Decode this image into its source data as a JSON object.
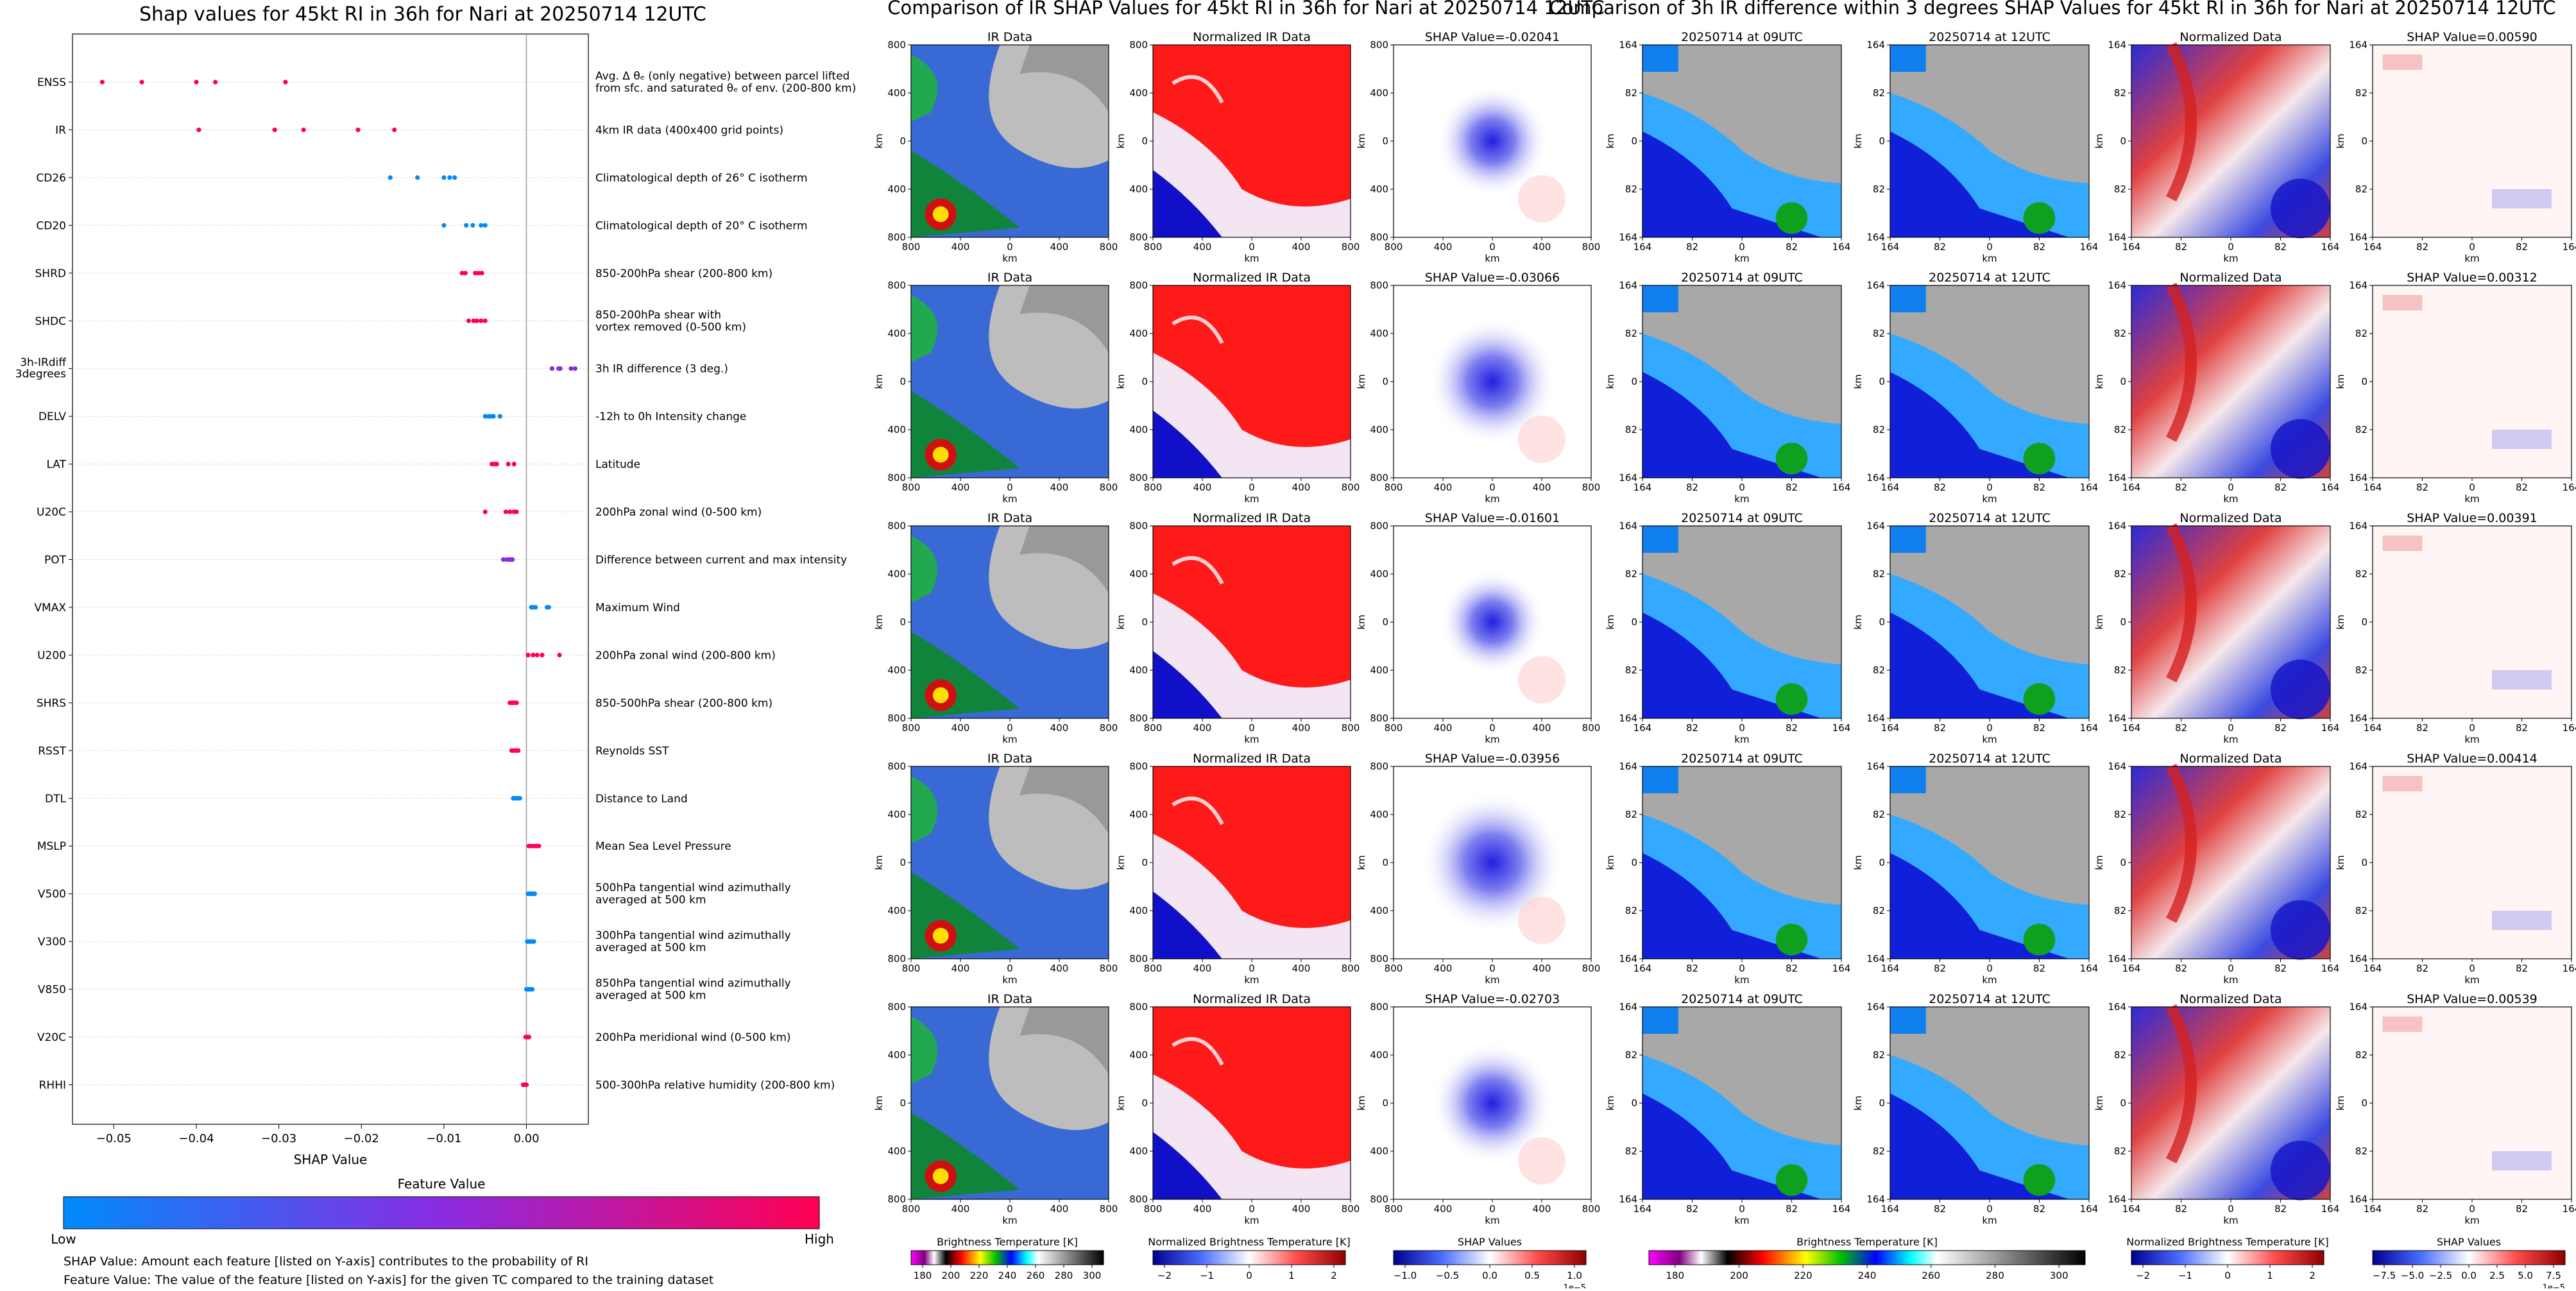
{
  "shap_section": {
    "title": "Shap values for 45kt RI in 36h for Nari at 20250714 12UTC",
    "xlabel": "SHAP Value",
    "colorbar_title": "Feature Value",
    "colorbar_low": "Low",
    "colorbar_high": "High",
    "colors": {
      "low": "#008afb",
      "mid": "#8a2be2",
      "high": "#ff0052"
    },
    "note1": "SHAP Value: Amount each feature [listed on Y-axis] contributes to the probability of RI",
    "note2": "Feature Value: The value of the feature [listed on Y-axis] for the given TC compared to the training dataset"
  },
  "ir_section": {
    "title": "Comparison of IR SHAP Values for 45kt RI in 36h for Nari at 20250714 12UTC",
    "col_titles": [
      "IR Data",
      "Normalized IR Data"
    ],
    "shap_titles": [
      "SHAP Value=-0.02041",
      "SHAP Value=-0.03066",
      "SHAP Value=-0.01601",
      "SHAP Value=-0.03956",
      "SHAP Value=-0.02703"
    ],
    "ticks": [
      "800",
      "400",
      "0",
      "400",
      "800"
    ],
    "axis_label": "km",
    "cbar_labels": [
      "Brightness Temperature [K]",
      "Normalized Brightness Temperature [K]",
      "SHAP Values"
    ],
    "cbar_ticks_bt": [
      "180",
      "200",
      "220",
      "240",
      "260",
      "280",
      "300"
    ],
    "cbar_ticks_norm": [
      "−2",
      "−1",
      "0",
      "1",
      "2"
    ],
    "cbar_ticks_shap": [
      "−1.0",
      "−0.5",
      "0.0",
      "0.5",
      "1.0"
    ],
    "shap_exponent": "1e−5"
  },
  "diff_section": {
    "title": "Comparison of 3h IR difference within 3 degrees SHAP Values for 45kt RI in 36h for Nari at 20250714 12UTC",
    "col_titles": [
      "20250714 at 09UTC",
      "20250714 at 12UTC",
      "Normalized Data"
    ],
    "shap_titles": [
      "SHAP Value=0.00590",
      "SHAP Value=0.00312",
      "SHAP Value=0.00391",
      "SHAP Value=0.00414",
      "SHAP Value=0.00539"
    ],
    "ticks": [
      "164",
      "82",
      "0",
      "82",
      "164"
    ],
    "axis_label": "km",
    "cbar_labels": [
      "Brightness Temperature [K]",
      "Normalized Brightness Temperature [K]",
      "SHAP Values"
    ],
    "cbar_ticks_bt": [
      "180",
      "200",
      "220",
      "240",
      "260",
      "280",
      "300"
    ],
    "cbar_ticks_norm": [
      "−2",
      "−1",
      "0",
      "1",
      "2"
    ],
    "cbar_ticks_shap": [
      "−7.5",
      "−5.0",
      "−2.5",
      "0.0",
      "2.5",
      "5.0",
      "7.5"
    ],
    "shap_exponent": "1e−5"
  },
  "chart_data": [
    {
      "type": "scatter",
      "title": "Shap values for 45kt RI in 36h for Nari at 20250714 12UTC",
      "xlabel": "SHAP Value",
      "xlim": [
        -0.055,
        0.0075
      ],
      "xticks": [
        -0.05,
        -0.04,
        -0.03,
        -0.02,
        -0.01,
        0.0
      ],
      "xtick_labels": [
        "−0.05",
        "−0.04",
        "−0.03",
        "−0.02",
        "−0.01",
        "0.00"
      ],
      "color_scale": "feature value (Low blue → High pink)",
      "features": [
        {
          "name": "ENSS",
          "desc": [
            "Avg. Δ θₑ (only negative) between parcel lifted",
            "from sfc. and saturated θₑ of env. (200-800 km)"
          ],
          "points": [
            [
              -0.0514,
              1
            ],
            [
              -0.0466,
              1
            ],
            [
              -0.04,
              1
            ],
            [
              -0.0377,
              1
            ],
            [
              -0.0292,
              1
            ]
          ]
        },
        {
          "name": "IR",
          "desc": [
            "4km IR data (400x400 grid points)"
          ],
          "points": [
            [
              -0.0397,
              1
            ],
            [
              -0.0305,
              1
            ],
            [
              -0.027,
              1
            ],
            [
              -0.0204,
              1
            ],
            [
              -0.016,
              1
            ]
          ]
        },
        {
          "name": "CD26",
          "desc": [
            "Climatological depth of 26° C isotherm"
          ],
          "points": [
            [
              -0.0165,
              0
            ],
            [
              -0.0132,
              0
            ],
            [
              -0.01,
              0
            ],
            [
              -0.0093,
              0
            ],
            [
              -0.0087,
              0
            ]
          ]
        },
        {
          "name": "CD20",
          "desc": [
            "Climatological depth of 20° C isotherm"
          ],
          "points": [
            [
              -0.01,
              0
            ],
            [
              -0.0073,
              0
            ],
            [
              -0.0065,
              0
            ],
            [
              -0.0055,
              0
            ],
            [
              -0.005,
              0
            ]
          ]
        },
        {
          "name": "SHRD",
          "desc": [
            "850-200hPa shear (200-800 km)"
          ],
          "points": [
            [
              -0.0078,
              1
            ],
            [
              -0.0074,
              1
            ],
            [
              -0.0062,
              1
            ],
            [
              -0.0058,
              1
            ],
            [
              -0.0054,
              1
            ]
          ]
        },
        {
          "name": "SHDC",
          "desc": [
            "850-200hPa shear with",
            "vortex removed (0-500 km)"
          ],
          "points": [
            [
              -0.007,
              1
            ],
            [
              -0.0064,
              1
            ],
            [
              -0.006,
              1
            ],
            [
              -0.0055,
              1
            ],
            [
              -0.005,
              1
            ]
          ]
        },
        {
          "name": "3h-IRdiff 3degrees",
          "desc": [
            "3h IR difference (3 deg.)"
          ],
          "points": [
            [
              0.0031,
              0.5
            ],
            [
              0.0039,
              0.5
            ],
            [
              0.0041,
              0.5
            ],
            [
              0.0054,
              0.5
            ],
            [
              0.0059,
              0.5
            ]
          ]
        },
        {
          "name": "DELV",
          "desc": [
            "-12h to 0h Intensity change"
          ],
          "points": [
            [
              -0.005,
              0
            ],
            [
              -0.0046,
              0
            ],
            [
              -0.0043,
              0
            ],
            [
              -0.004,
              0
            ],
            [
              -0.0032,
              0
            ]
          ]
        },
        {
          "name": "LAT",
          "desc": [
            "Latitude"
          ],
          "points": [
            [
              -0.0042,
              1
            ],
            [
              -0.0039,
              1
            ],
            [
              -0.0036,
              1
            ],
            [
              -0.0022,
              1
            ],
            [
              -0.0015,
              1
            ]
          ]
        },
        {
          "name": "U20C",
          "desc": [
            "200hPa zonal wind (0-500 km)"
          ],
          "points": [
            [
              -0.005,
              1
            ],
            [
              -0.0025,
              1
            ],
            [
              -0.002,
              1
            ],
            [
              -0.0015,
              1
            ],
            [
              -0.0012,
              1
            ]
          ]
        },
        {
          "name": "POT",
          "desc": [
            "Difference between current and max intensity"
          ],
          "points": [
            [
              -0.0028,
              0.5
            ],
            [
              -0.0024,
              0.5
            ],
            [
              -0.0021,
              0.5
            ],
            [
              -0.0019,
              0.5
            ],
            [
              -0.0017,
              0.5
            ]
          ]
        },
        {
          "name": "VMAX",
          "desc": [
            "Maximum Wind"
          ],
          "points": [
            [
              0.0006,
              0
            ],
            [
              0.0008,
              0
            ],
            [
              0.0011,
              0
            ],
            [
              0.0025,
              0
            ],
            [
              0.0027,
              0
            ]
          ]
        },
        {
          "name": "U200",
          "desc": [
            "200hPa zonal wind (200-800 km)"
          ],
          "points": [
            [
              0.0002,
              1
            ],
            [
              0.0008,
              1
            ],
            [
              0.0013,
              1
            ],
            [
              0.0019,
              1
            ],
            [
              0.004,
              1
            ]
          ]
        },
        {
          "name": "SHRS",
          "desc": [
            "850-500hPa shear (200-800 km)"
          ],
          "points": [
            [
              -0.002,
              1
            ],
            [
              -0.0018,
              1
            ],
            [
              -0.0016,
              1
            ],
            [
              -0.0014,
              1
            ],
            [
              -0.0012,
              1
            ]
          ]
        },
        {
          "name": "RSST",
          "desc": [
            "Reynolds SST"
          ],
          "points": [
            [
              -0.0018,
              1
            ],
            [
              -0.0016,
              1
            ],
            [
              -0.0014,
              1
            ],
            [
              -0.0012,
              1
            ],
            [
              -0.001,
              1
            ]
          ]
        },
        {
          "name": "DTL",
          "desc": [
            "Distance to Land"
          ],
          "points": [
            [
              -0.0016,
              0
            ],
            [
              -0.0014,
              0
            ],
            [
              -0.0012,
              0
            ],
            [
              -0.001,
              0
            ],
            [
              -0.0008,
              0
            ]
          ]
        },
        {
          "name": "MSLP",
          "desc": [
            "Mean Sea Level Pressure"
          ],
          "points": [
            [
              0.0003,
              1
            ],
            [
              0.0006,
              1
            ],
            [
              0.0009,
              1
            ],
            [
              0.0012,
              1
            ],
            [
              0.0015,
              1
            ]
          ]
        },
        {
          "name": "V500",
          "desc": [
            "500hPa tangential wind azimuthally",
            "averaged at 500 km"
          ],
          "points": [
            [
              0.0002,
              0
            ],
            [
              0.0004,
              0
            ],
            [
              0.0006,
              0
            ],
            [
              0.0008,
              0
            ],
            [
              0.001,
              0
            ]
          ]
        },
        {
          "name": "V300",
          "desc": [
            "300hPa tangential wind azimuthally",
            "averaged at 500 km"
          ],
          "points": [
            [
              0.0001,
              0
            ],
            [
              0.0003,
              0
            ],
            [
              0.0005,
              0
            ],
            [
              0.0007,
              0
            ],
            [
              0.0009,
              0
            ]
          ]
        },
        {
          "name": "V850",
          "desc": [
            "850hPa tangential wind azimuthally",
            "averaged at 500 km"
          ],
          "points": [
            [
              0.0,
              0
            ],
            [
              0.0002,
              0
            ],
            [
              0.0004,
              0
            ],
            [
              0.0005,
              0
            ],
            [
              0.0007,
              0
            ]
          ]
        },
        {
          "name": "V20C",
          "desc": [
            "200hPa meridional wind (0-500 km)"
          ],
          "points": [
            [
              -0.0001,
              1
            ],
            [
              0.0,
              1
            ],
            [
              0.0001,
              1
            ],
            [
              0.0002,
              1
            ],
            [
              0.0003,
              1
            ]
          ]
        },
        {
          "name": "RHHI",
          "desc": [
            "500-300hPa relative humidity (200-800 km)"
          ],
          "points": [
            [
              -0.0004,
              1
            ],
            [
              -0.0003,
              1
            ],
            [
              -0.0002,
              1
            ],
            [
              -0.0001,
              1
            ],
            [
              0.0,
              1
            ]
          ]
        }
      ]
    },
    {
      "type": "heatmap",
      "title": "Comparison of IR SHAP Values for 45kt RI in 36h for Nari at 20250714 12UTC",
      "xlabel": "km",
      "ylabel": "km",
      "rows": 5,
      "columns": [
        "IR Data",
        "Normalized IR Data",
        "SHAP Value"
      ],
      "shap_values": [
        -0.02041,
        -0.03066,
        -0.01601,
        -0.03956,
        -0.02703
      ]
    },
    {
      "type": "heatmap",
      "title": "Comparison of 3h IR difference within 3 degrees SHAP Values for 45kt RI in 36h for Nari at 20250714 12UTC",
      "xlabel": "km",
      "ylabel": "km",
      "rows": 5,
      "columns": [
        "20250714 at 09UTC",
        "20250714 at 12UTC",
        "Normalized Data",
        "SHAP Value"
      ],
      "shap_values": [
        0.0059,
        0.00312,
        0.00391,
        0.00414,
        0.00539
      ]
    }
  ]
}
